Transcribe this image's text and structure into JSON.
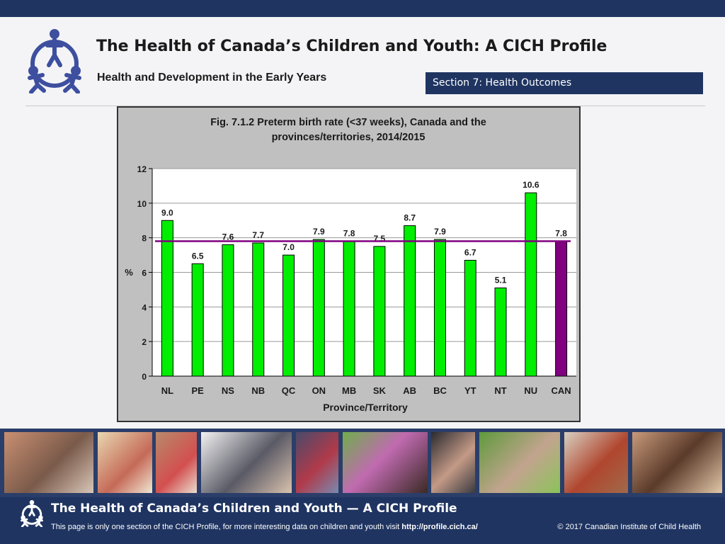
{
  "header": {
    "title": "The Health of Canada’s Children and Youth: A CICH Profile",
    "subtitle": "Health and Development in the Early Years",
    "section": "Section 7:  Health Outcomes"
  },
  "colors": {
    "brand_navy": "#1f3461",
    "bar_province": "#00ee00",
    "bar_canada": "#800080",
    "average_line": "#800080",
    "plot_background": "#ffffff",
    "chart_background": "#c0c0c0"
  },
  "icons": {
    "header_logo": "cich-people-circle-icon",
    "footer_logo": "cich-people-circle-icon"
  },
  "chart_data": {
    "type": "bar",
    "title_line1": "Fig. 7.1.2 Preterm birth rate (<37 weeks), Canada and the",
    "title_line2": "provinces/territories, 2014/2015",
    "xlabel": "Province/Territory",
    "ylabel": "%",
    "ylim": [
      0,
      12
    ],
    "yticks": [
      "0",
      "2",
      "4",
      "6",
      "8",
      "10",
      "12"
    ],
    "grid": true,
    "categories": [
      "NL",
      "PE",
      "NS",
      "NB",
      "QC",
      "ON",
      "MB",
      "SK",
      "AB",
      "BC",
      "YT",
      "NT",
      "NU",
      "CAN"
    ],
    "values": [
      9.0,
      6.5,
      7.6,
      7.7,
      7.0,
      7.9,
      7.8,
      7.5,
      8.7,
      7.9,
      6.7,
      5.1,
      10.6,
      7.8
    ],
    "value_labels": [
      "9.0",
      "6.5",
      "7.6",
      "7.7",
      "7.0",
      "7.9",
      "7.8",
      "7.5",
      "8.7",
      "7.9",
      "6.7",
      "5.1",
      "10.6",
      "7.8"
    ],
    "reference_line": 7.8,
    "highlight_category": "CAN"
  },
  "footer": {
    "title": "The Health of Canada’s Children and Youth — A CICH Profile",
    "note": "This page is only one section of the CICH Profile, for more interesting data on children and youth visit",
    "link": "http://profile.cich.ca/",
    "copyright": "© 2017 Canadian Institute of Child Health"
  }
}
